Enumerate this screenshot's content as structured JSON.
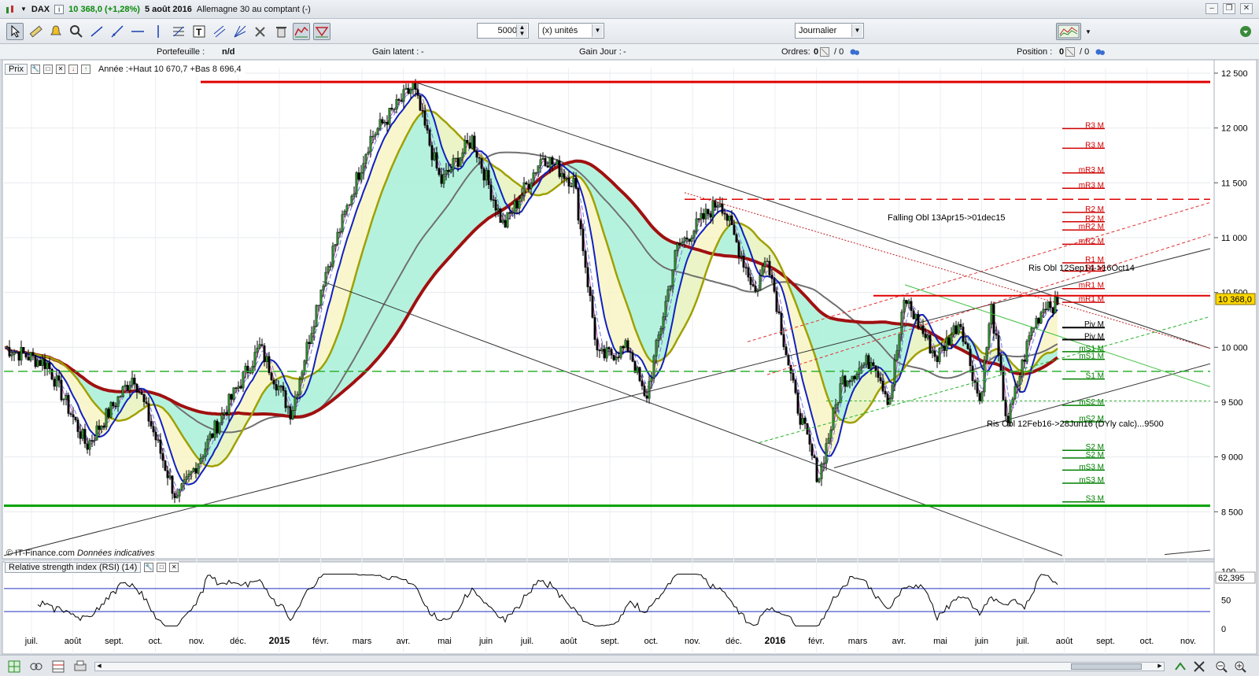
{
  "title": {
    "symbol": "DAX",
    "price_change": "10 368,0 (+1,28%)",
    "date": "5 août 2016",
    "instrument": "Allemagne 30 au comptant (-)"
  },
  "toolbar": {
    "quantity": "5000",
    "units": "(x) unités",
    "period": "Journalier"
  },
  "info": {
    "portfolio_label": "Portefeuille :",
    "portfolio_value": "n/d",
    "latent_label": "Gain latent :",
    "latent_value": "-",
    "day_label": "Gain Jour :",
    "day_value": "-",
    "orders_label": "Ordres:",
    "orders_value": "0",
    "orders_total": "/ 0",
    "position_label": "Position :",
    "position_value": "0",
    "position_total": "/ 0"
  },
  "chart": {
    "panel_title": "Prix",
    "year_info": "Année :+Haut 10 670,7 +Bas 8 696,4",
    "copyright": "© IT-Finance.com",
    "copyright_note": "Données indicatives",
    "last_price": "10 368,0",
    "falling_label": "Falling Obl 13Apr15->01dec15",
    "ris_label_upper": "Ris Obl 12Sep14->16Oct14",
    "ris_label_lower": "Ris Obl 12Feb16->28Jun16 (DYly calc)...9500",
    "colors": {
      "resistance": "#e00000",
      "support": "#00a000",
      "ma_blue": "#1020c0",
      "ma_olive": "#a0a000",
      "ma_maroon": "#a01010",
      "ma_gray": "#707070",
      "fill_green": "#a8f0d8",
      "fill_yellow": "#f8f4c0"
    }
  },
  "rsi": {
    "panel_title": "Relative strength index (RSI) (14)",
    "value": "62,395"
  },
  "chart_data": {
    "type": "candlestick",
    "title": "DAX",
    "y_ticks": [
      "12 500",
      "12 000",
      "11 500",
      "11 000",
      "10 500",
      "10 000",
      "9 500",
      "9 000",
      "8 500"
    ],
    "x_ticks": [
      "juil.",
      "août",
      "sept.",
      "oct.",
      "nov.",
      "déc.",
      "2015",
      "févr.",
      "mars",
      "avr.",
      "mai",
      "juin",
      "juil.",
      "août",
      "sept.",
      "oct.",
      "nov.",
      "déc.",
      "2016",
      "févr.",
      "mars",
      "avr.",
      "mai",
      "juin",
      "juil.",
      "août",
      "sept.",
      "oct.",
      "nov."
    ],
    "rsi_ticks": [
      "100",
      "50",
      "0"
    ],
    "ylim": [
      8100,
      12550
    ],
    "pivot_labels_red": [
      "R3 M",
      "R3 M",
      "mR3 M",
      "mR3 M",
      "R2 M",
      "R2 M",
      "mR2 M",
      "mR2 M",
      "R1 M",
      "R1 M",
      "mR1 M",
      "mR1 M"
    ],
    "pivot_labels_red_levels": [
      11995,
      11815,
      11590,
      11450,
      11230,
      11145,
      11070,
      10940,
      10770,
      10695,
      10535,
      10410
    ],
    "pivot_labels_mid": [
      "Piv M",
      "Piv M"
    ],
    "pivot_labels_mid_levels": [
      10180,
      10070
    ],
    "pivot_labels_green": [
      "mS1 M",
      "mS1 M",
      "S1 M",
      "mS2 M",
      "mS2 M",
      "S2 M",
      "S2 M",
      "mS3 M",
      "mS3 M",
      "S3 M"
    ],
    "pivot_labels_green_levels": [
      9960,
      9890,
      9710,
      9470,
      9320,
      9060,
      8990,
      8880,
      8760,
      8590
    ]
  }
}
